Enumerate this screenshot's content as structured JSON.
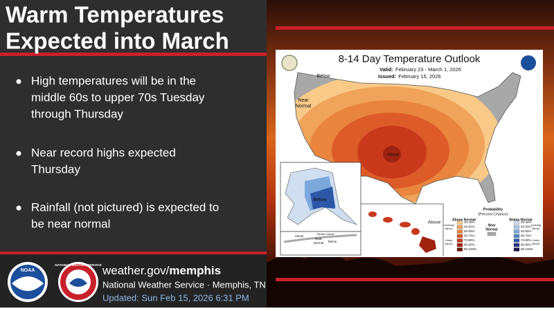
{
  "title_lines": [
    "Warm Temperatures",
    "Expected into March"
  ],
  "bullets": [
    [
      "High temperatures will be in the",
      "middle 60s to upper 70s Tuesday",
      "through Thursday"
    ],
    [
      "Near record highs expected",
      "Thursday"
    ],
    [
      "Rainfall (not pictured) is expected to",
      "be near normal"
    ]
  ],
  "footer": {
    "site_prefix": "weather.gov/",
    "site_office": "memphis",
    "office": "National Weather Service · Memphis, TN",
    "updated": "Updated: Sun Feb 15, 2026 6:31 PM"
  },
  "logos": [
    "NOAA",
    "NATIONAL WEATHER SERVICE"
  ],
  "outlook": {
    "title": "8-14 Day Temperature Outlook",
    "valid_label": "Valid:",
    "valid": "February 23 - March 1, 2026",
    "issued_label": "Issued:",
    "issued": "February 15, 2026",
    "map_labels": [
      {
        "lines": [
          "Below"
        ]
      },
      {
        "lines": [
          "Near",
          "Normal"
        ]
      },
      {
        "lines": [
          "Above"
        ]
      },
      {
        "lines": [
          "Below"
        ]
      },
      {
        "lines": [
          "Above"
        ]
      },
      {
        "lines": [
          "Aleutian Islands"
        ]
      },
      {
        "lines": [
          "Above"
        ]
      },
      {
        "lines": [
          "Near",
          "Normal"
        ]
      },
      {
        "lines": [
          "Below"
        ]
      }
    ],
    "legend": {
      "title_lines": [
        "Probability",
        "(Percent Chance)"
      ],
      "above_title": "Above Normal",
      "near_title_lines": [
        "Near",
        "Normal"
      ],
      "below_title": "Below Normal",
      "ranges": [
        "33-40%",
        "40-50%",
        "50-60%",
        "60-70%",
        "70-80%",
        "80-90%",
        "90-100%"
      ],
      "above_colors": [
        "#f9c987",
        "#f0a35a",
        "#e9853e",
        "#dd5b29",
        "#c9391c",
        "#a02310",
        "#6e1608"
      ],
      "below_colors": [
        "#d0def0",
        "#a9c6e8",
        "#7da8dc",
        "#4d82c7",
        "#2d58a8",
        "#252f86",
        "#1b1650"
      ],
      "near_color": "#a8a8a8",
      "above_side": [
        [
          "Leaning",
          "Above"
        ],
        [
          "Likely",
          "Above"
        ]
      ],
      "below_side": [
        [
          "Leaning",
          "Below"
        ],
        [
          "Likely",
          "Below"
        ]
      ]
    }
  }
}
